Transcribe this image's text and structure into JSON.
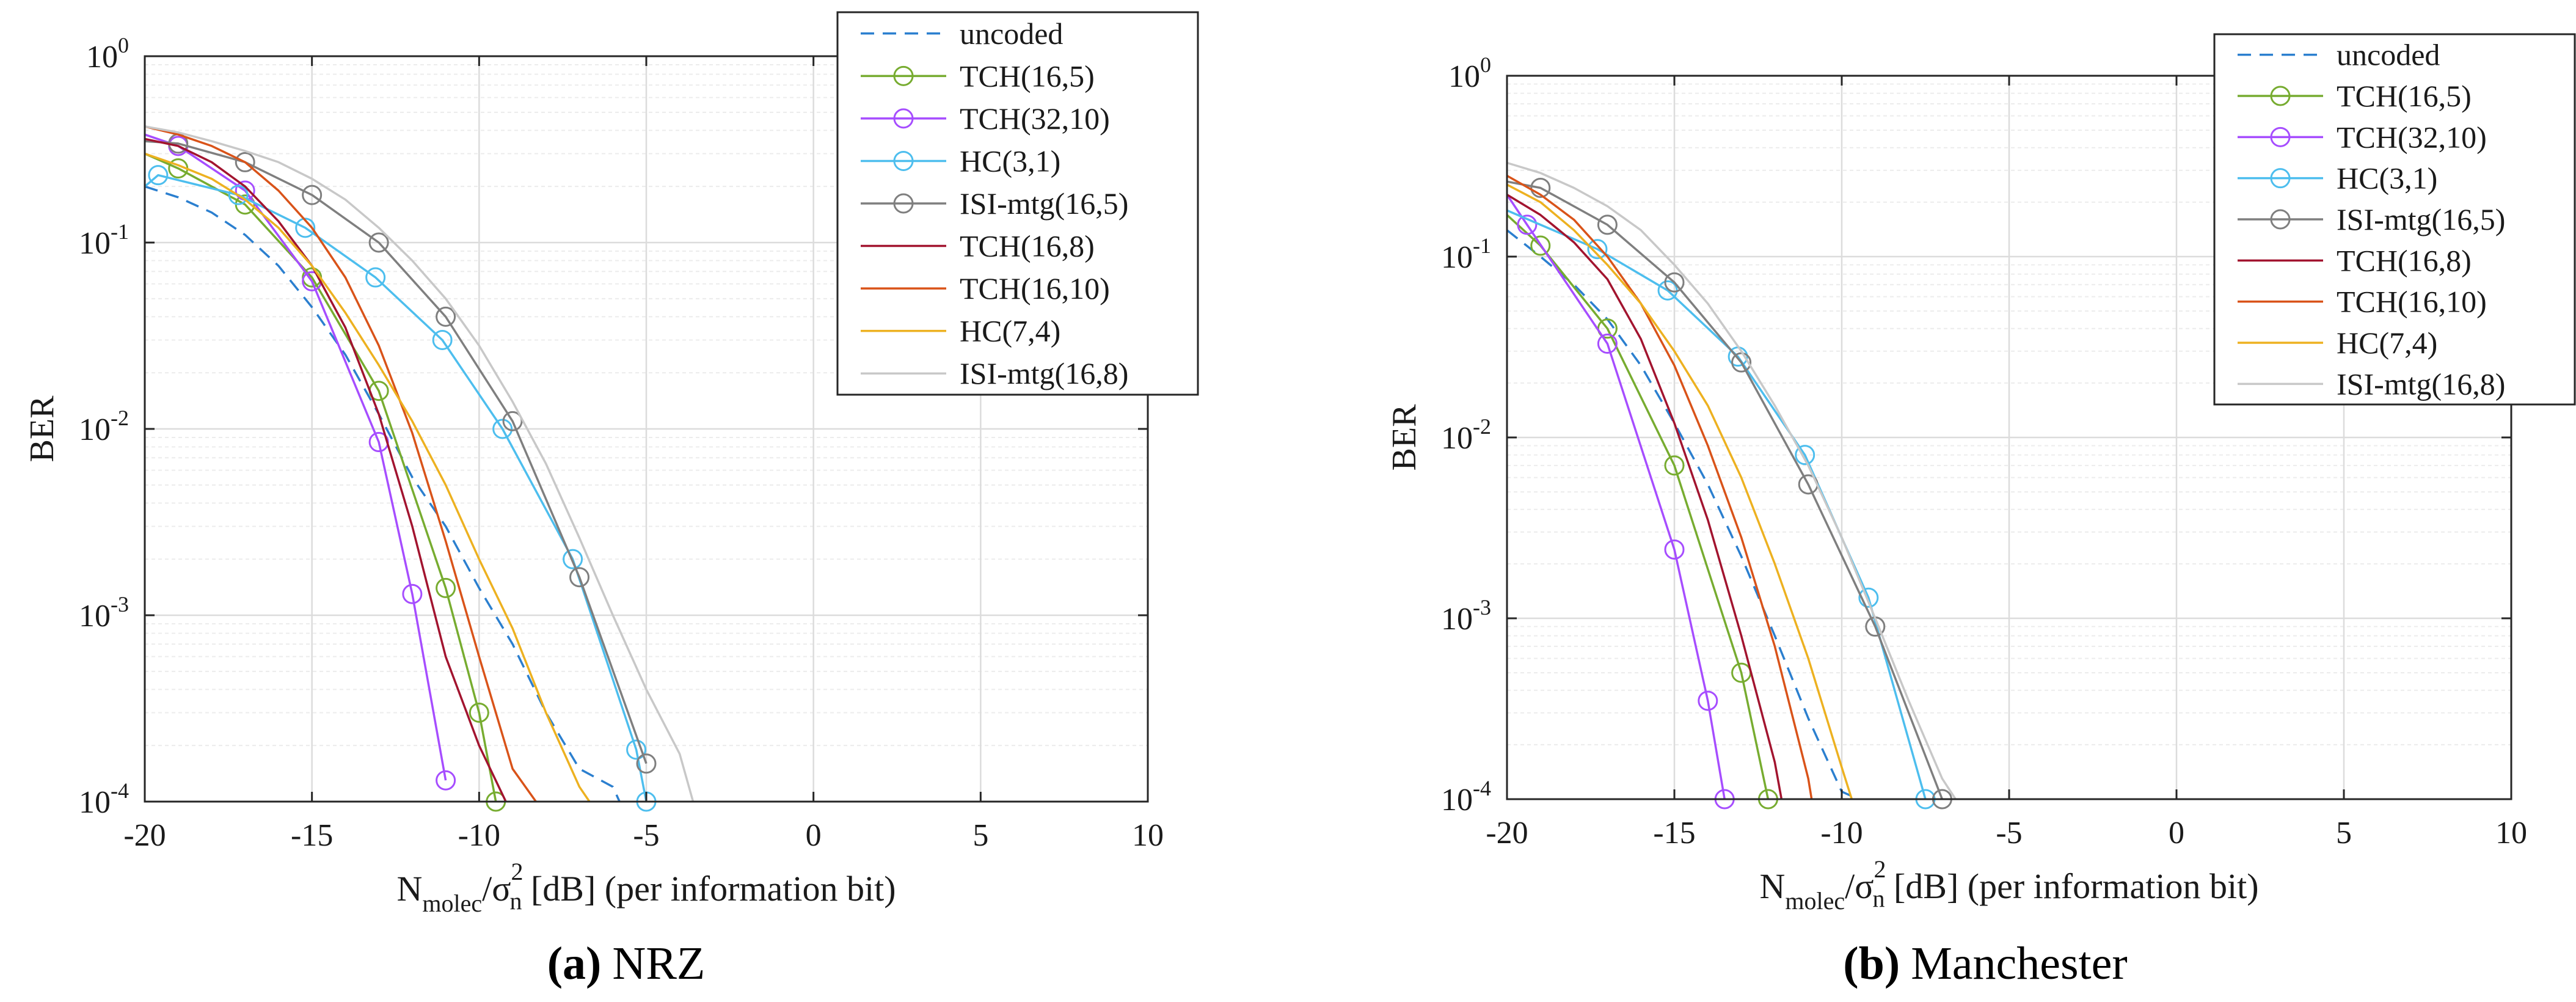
{
  "figure": {
    "panels": [
      {
        "caption_letter": "(a)",
        "caption_text": "NRZ"
      },
      {
        "caption_letter": "(b)",
        "caption_text": "Manchester"
      }
    ]
  },
  "chart_data": [
    {
      "type": "line",
      "panel": "a",
      "title": "NRZ",
      "xlabel": "N_molec/σ_n^2 [dB] (per information bit)",
      "xlabel_parts": {
        "main": "N",
        "sub1": "molec",
        "mid": "/σ",
        "sup": "2",
        "sub2": "n",
        "rest": " [dB] (per information bit)"
      },
      "ylabel": "BER",
      "xlim": [
        -20,
        10
      ],
      "ylim": [
        0.0001,
        1
      ],
      "yscale": "log",
      "grid": true,
      "legend_position": "top-right",
      "x_ticks": [
        "-20",
        "-15",
        "-10",
        "-5",
        "0",
        "5",
        "10"
      ],
      "y_ticks": [
        {
          "base": "10",
          "exp": "0"
        },
        {
          "base": "10",
          "exp": "-1"
        },
        {
          "base": "10",
          "exp": "-2"
        },
        {
          "base": "10",
          "exp": "-3"
        },
        {
          "base": "10",
          "exp": "-4"
        }
      ],
      "series": [
        {
          "name": "uncoded",
          "color": "#2b7fcf",
          "style": "dashed",
          "marker": "none",
          "x": [
            -20,
            -19,
            -18,
            -17,
            -16,
            -15,
            -14,
            -13,
            -12,
            -11,
            -10,
            -9,
            -8,
            -7,
            -6,
            -5.8
          ],
          "y": [
            0.2,
            0.175,
            0.145,
            0.11,
            0.075,
            0.045,
            0.025,
            0.012,
            0.0055,
            0.003,
            0.0014,
            0.0007,
            0.0003,
            0.00015,
            0.00012,
            0.0001
          ]
        },
        {
          "name": "TCH(16,5)",
          "color": "#77ac30",
          "style": "solid",
          "marker": "circle",
          "x": [
            -20,
            -19,
            -17,
            -15,
            -13,
            -11,
            -10,
            -9.5
          ],
          "y": [
            0.3,
            0.25,
            0.16,
            0.065,
            0.016,
            0.0014,
            0.0003,
            0.0001
          ]
        },
        {
          "name": "TCH(32,10)",
          "color": "#a64dff",
          "style": "solid",
          "marker": "circle",
          "x": [
            -20,
            -19,
            -17,
            -15,
            -13,
            -12,
            -11
          ],
          "y": [
            0.38,
            0.33,
            0.19,
            0.062,
            0.0085,
            0.0013,
            0.00013
          ]
        },
        {
          "name": "HC(3,1)",
          "color": "#4dbeee",
          "style": "solid",
          "marker": "circle",
          "x": [
            -20,
            -19.6,
            -17.2,
            -15.2,
            -13.1,
            -11.1,
            -9.3,
            -7.2,
            -5.3,
            -5
          ],
          "y": [
            0.2,
            0.23,
            0.18,
            0.12,
            0.065,
            0.03,
            0.01,
            0.002,
            0.00019,
            0.0001
          ]
        },
        {
          "name": "ISI-mtg(16,5)",
          "color": "#7f7f7f",
          "style": "solid",
          "marker": "circle",
          "x": [
            -20,
            -19,
            -17,
            -15,
            -13,
            -11,
            -9,
            -7,
            -5
          ],
          "y": [
            0.35,
            0.34,
            0.27,
            0.18,
            0.1,
            0.04,
            0.011,
            0.0016,
            0.00016
          ]
        },
        {
          "name": "TCH(16,8)",
          "color": "#a2142f",
          "style": "solid",
          "marker": "none",
          "x": [
            -20,
            -19,
            -18,
            -17,
            -16,
            -15,
            -14,
            -13,
            -12,
            -11,
            -10,
            -9.2
          ],
          "y": [
            0.36,
            0.33,
            0.27,
            0.2,
            0.13,
            0.075,
            0.035,
            0.012,
            0.003,
            0.0006,
            0.0002,
            0.0001
          ]
        },
        {
          "name": "TCH(16,10)",
          "color": "#d95319",
          "style": "solid",
          "marker": "none",
          "x": [
            -20,
            -19,
            -18,
            -17,
            -16,
            -15,
            -14,
            -13,
            -12,
            -11,
            -10,
            -9,
            -8.3
          ],
          "y": [
            0.42,
            0.38,
            0.33,
            0.27,
            0.19,
            0.12,
            0.065,
            0.028,
            0.0095,
            0.0025,
            0.0006,
            0.00015,
            0.0001
          ]
        },
        {
          "name": "HC(7,4)",
          "color": "#edb120",
          "style": "solid",
          "marker": "none",
          "x": [
            -20,
            -19,
            -18,
            -17,
            -16,
            -15,
            -14,
            -13,
            -12,
            -11,
            -10,
            -9,
            -8,
            -7,
            -6.7
          ],
          "y": [
            0.3,
            0.26,
            0.22,
            0.17,
            0.12,
            0.075,
            0.042,
            0.022,
            0.011,
            0.005,
            0.002,
            0.00085,
            0.0003,
            0.00012,
            0.0001
          ]
        },
        {
          "name": "ISI-mtg(16,8)",
          "color": "#c8c8c8",
          "style": "solid",
          "marker": "none",
          "x": [
            -20,
            -19,
            -18,
            -17,
            -16,
            -15,
            -14,
            -13,
            -12,
            -11,
            -10,
            -9,
            -8,
            -7,
            -6,
            -5,
            -4,
            -3.6
          ],
          "y": [
            0.42,
            0.39,
            0.35,
            0.31,
            0.27,
            0.22,
            0.17,
            0.12,
            0.08,
            0.05,
            0.028,
            0.014,
            0.0065,
            0.0026,
            0.001,
            0.0004,
            0.00018,
            0.0001
          ]
        }
      ]
    },
    {
      "type": "line",
      "panel": "b",
      "title": "Manchester",
      "xlabel": "N_molec/σ_n^2 [dB] (per information bit)",
      "xlabel_parts": {
        "main": "N",
        "sub1": "molec",
        "mid": "/σ",
        "sup": "2",
        "sub2": "n",
        "rest": " [dB] (per information bit)"
      },
      "ylabel": "BER",
      "xlim": [
        -20,
        10
      ],
      "ylim": [
        0.0001,
        1
      ],
      "yscale": "log",
      "grid": true,
      "legend_position": "top-right",
      "x_ticks": [
        "-20",
        "-15",
        "-10",
        "-5",
        "0",
        "5",
        "10"
      ],
      "y_ticks": [
        {
          "base": "10",
          "exp": "0"
        },
        {
          "base": "10",
          "exp": "-1"
        },
        {
          "base": "10",
          "exp": "-2"
        },
        {
          "base": "10",
          "exp": "-3"
        },
        {
          "base": "10",
          "exp": "-4"
        }
      ],
      "series": [
        {
          "name": "uncoded",
          "color": "#2b7fcf",
          "style": "dashed",
          "marker": "none",
          "x": [
            -20,
            -19,
            -18,
            -17,
            -16,
            -15,
            -14,
            -13,
            -12,
            -11,
            -10,
            -9.5
          ],
          "y": [
            0.14,
            0.1,
            0.07,
            0.045,
            0.025,
            0.012,
            0.0055,
            0.0022,
            0.0008,
            0.00028,
            0.00011,
            0.0001
          ]
        },
        {
          "name": "TCH(16,5)",
          "color": "#77ac30",
          "style": "solid",
          "marker": "circle",
          "x": [
            -20,
            -19,
            -17,
            -15,
            -13,
            -12.2
          ],
          "y": [
            0.17,
            0.115,
            0.04,
            0.007,
            0.0005,
            0.0001
          ]
        },
        {
          "name": "TCH(32,10)",
          "color": "#a64dff",
          "style": "solid",
          "marker": "circle",
          "x": [
            -20,
            -19.4,
            -17,
            -15,
            -14,
            -13.5
          ],
          "y": [
            0.22,
            0.15,
            0.033,
            0.0024,
            0.00035,
            0.0001
          ]
        },
        {
          "name": "HC(3,1)",
          "color": "#4dbeee",
          "style": "solid",
          "marker": "circle",
          "x": [
            -20,
            -17.3,
            -15.2,
            -13.1,
            -11.1,
            -9.2,
            -7.5
          ],
          "y": [
            0.18,
            0.11,
            0.065,
            0.028,
            0.008,
            0.0013,
            0.0001
          ]
        },
        {
          "name": "ISI-mtg(16,5)",
          "color": "#7f7f7f",
          "style": "solid",
          "marker": "circle",
          "x": [
            -20,
            -19,
            -17,
            -15,
            -13,
            -11,
            -9,
            -7
          ],
          "y": [
            0.26,
            0.24,
            0.15,
            0.072,
            0.026,
            0.0055,
            0.0009,
            0.0001
          ]
        },
        {
          "name": "TCH(16,8)",
          "color": "#a2142f",
          "style": "solid",
          "marker": "none",
          "x": [
            -20,
            -19,
            -18,
            -17,
            -16,
            -15,
            -14,
            -13,
            -12,
            -11.8
          ],
          "y": [
            0.22,
            0.17,
            0.12,
            0.075,
            0.035,
            0.012,
            0.0035,
            0.0008,
            0.00016,
            0.0001
          ]
        },
        {
          "name": "TCH(16,10)",
          "color": "#d95319",
          "style": "solid",
          "marker": "none",
          "x": [
            -20,
            -19,
            -18,
            -17,
            -16,
            -15,
            -14,
            -13,
            -12,
            -11,
            -10.9
          ],
          "y": [
            0.28,
            0.22,
            0.16,
            0.1,
            0.055,
            0.025,
            0.009,
            0.0028,
            0.0007,
            0.00013,
            0.0001
          ]
        },
        {
          "name": "HC(7,4)",
          "color": "#edb120",
          "style": "solid",
          "marker": "none",
          "x": [
            -20,
            -19,
            -18,
            -17,
            -16,
            -15,
            -14,
            -13,
            -12,
            -11,
            -10,
            -9.7
          ],
          "y": [
            0.25,
            0.2,
            0.14,
            0.09,
            0.055,
            0.03,
            0.015,
            0.006,
            0.002,
            0.0006,
            0.00015,
            0.0001
          ]
        },
        {
          "name": "ISI-mtg(16,8)",
          "color": "#c8c8c8",
          "style": "solid",
          "marker": "none",
          "x": [
            -20,
            -19,
            -18,
            -17,
            -16,
            -15,
            -14,
            -13,
            -12,
            -11,
            -10,
            -9,
            -8,
            -7,
            -6.6
          ],
          "y": [
            0.33,
            0.29,
            0.24,
            0.19,
            0.14,
            0.09,
            0.055,
            0.03,
            0.015,
            0.007,
            0.0028,
            0.001,
            0.00035,
            0.00013,
            0.0001
          ]
        }
      ]
    }
  ]
}
